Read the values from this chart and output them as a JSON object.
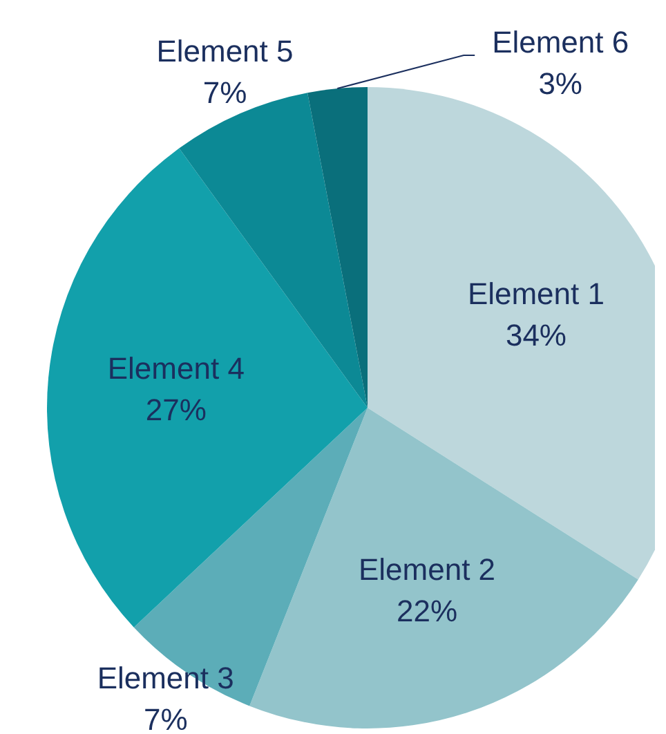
{
  "chart_data": {
    "type": "pie",
    "categories": [
      "Element 1",
      "Element 2",
      "Element 3",
      "Element 4",
      "Element 5",
      "Element 6"
    ],
    "values": [
      34,
      22,
      7,
      27,
      7,
      3
    ],
    "value_labels": [
      "34%",
      "22%",
      "7%",
      "27%",
      "7%",
      "3%"
    ],
    "colors": [
      "#bdd7dc",
      "#93c4cb",
      "#5cadb8",
      "#12a0ab",
      "#0c8995",
      "#0a6f7b"
    ],
    "legend": false
  }
}
